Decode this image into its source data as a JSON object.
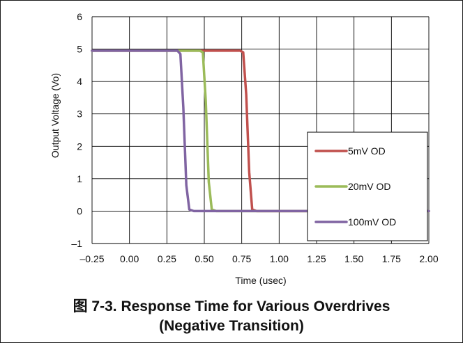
{
  "caption": {
    "line1": "图 7-3. Response Time for Various Overdrives",
    "line2": "(Negative Transition)"
  },
  "chart_data": {
    "type": "line",
    "title": "",
    "xlabel": "Time (usec)",
    "ylabel": "Output Voltage (Vo)",
    "xlim": [
      -0.25,
      2.0
    ],
    "ylim": [
      -1,
      6
    ],
    "x_ticks": [
      "–0.25",
      "0.00",
      "0.25",
      "0.50",
      "0.75",
      "1.00",
      "1.25",
      "1.50",
      "1.75",
      "2.00"
    ],
    "y_ticks": [
      "6",
      "5",
      "4",
      "3",
      "2",
      "1",
      "0",
      "–1"
    ],
    "grid": true,
    "legend_position": "bottom-right",
    "series": [
      {
        "name": "5mV OD",
        "color": "#c0504d",
        "x": [
          -0.25,
          0.0,
          0.25,
          0.5,
          0.74,
          0.76,
          0.78,
          0.8,
          0.82,
          0.85,
          1.0,
          1.5,
          2.0
        ],
        "y": [
          4.95,
          4.95,
          4.95,
          4.95,
          4.95,
          4.9,
          3.6,
          1.2,
          0.05,
          0.0,
          0.0,
          0.0,
          0.0
        ]
      },
      {
        "name": "20mV OD",
        "color": "#9bbb59",
        "x": [
          -0.25,
          0.0,
          0.25,
          0.47,
          0.49,
          0.51,
          0.53,
          0.55,
          0.58,
          1.0,
          1.5,
          2.0
        ],
        "y": [
          4.95,
          4.95,
          4.95,
          4.95,
          4.9,
          3.4,
          0.9,
          0.05,
          0.0,
          0.0,
          0.0,
          0.0
        ]
      },
      {
        "name": "100mV OD",
        "color": "#8064a2",
        "x": [
          -0.25,
          0.0,
          0.25,
          0.32,
          0.34,
          0.36,
          0.38,
          0.4,
          0.43,
          1.0,
          1.5,
          2.0
        ],
        "y": [
          4.95,
          4.95,
          4.95,
          4.95,
          4.85,
          3.2,
          0.8,
          0.05,
          0.0,
          0.0,
          0.0,
          0.0
        ]
      }
    ]
  }
}
